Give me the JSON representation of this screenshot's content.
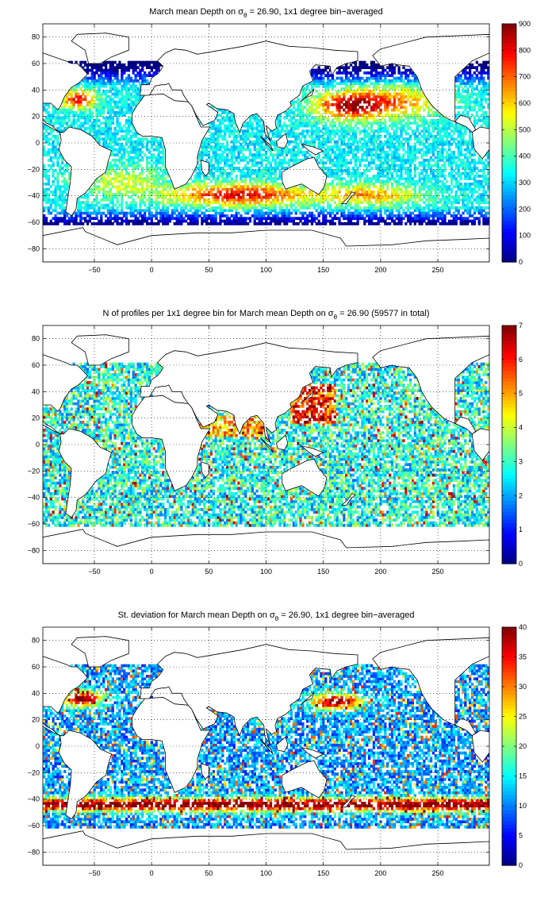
{
  "chart_data": [
    {
      "type": "heatmap",
      "title_main": "March mean Depth on σ",
      "title_sub": "θ",
      "title_rest": " = 26.90, 1x1 degree bin−averaged",
      "xticks": [
        "−50",
        "0",
        "50",
        "100",
        "150",
        "200",
        "250"
      ],
      "xtick_values": [
        -50,
        0,
        50,
        100,
        150,
        200,
        250
      ],
      "yticks": [
        "80",
        "60",
        "40",
        "20",
        "0",
        "−20",
        "−40",
        "−60",
        "−80"
      ],
      "ytick_values": [
        80,
        60,
        40,
        20,
        0,
        -20,
        -40,
        -60,
        -80
      ],
      "xlim": [
        -95,
        295
      ],
      "ylim": [
        -90,
        90
      ],
      "colorbar": {
        "min": 0,
        "max": 900,
        "ticks": [
          "0",
          "100",
          "200",
          "300",
          "400",
          "500",
          "600",
          "700",
          "800",
          "900"
        ],
        "tick_values": [
          0,
          100,
          200,
          300,
          400,
          500,
          600,
          700,
          800,
          900
        ]
      },
      "colormap": "jet",
      "grid": "dotted",
      "field": "depth"
    },
    {
      "type": "heatmap",
      "title_main": "N of profiles per 1x1 degree bin for March mean Depth on σ",
      "title_sub": "θ",
      "title_rest": " = 26.90 (59577 in total)",
      "xticks": [
        "−50",
        "0",
        "50",
        "100",
        "150",
        "200",
        "250"
      ],
      "xtick_values": [
        -50,
        0,
        50,
        100,
        150,
        200,
        250
      ],
      "yticks": [
        "80",
        "60",
        "40",
        "20",
        "0",
        "−20",
        "−40",
        "−60",
        "−80"
      ],
      "ytick_values": [
        80,
        60,
        40,
        20,
        0,
        -20,
        -40,
        -60,
        -80
      ],
      "xlim": [
        -95,
        295
      ],
      "ylim": [
        -90,
        90
      ],
      "colorbar": {
        "min": 0,
        "max": 7,
        "ticks": [
          "0",
          "1",
          "2",
          "3",
          "4",
          "5",
          "6",
          "7"
        ],
        "tick_values": [
          0,
          1,
          2,
          3,
          4,
          5,
          6,
          7
        ]
      },
      "colormap": "jet",
      "grid": "dotted",
      "field": "count"
    },
    {
      "type": "heatmap",
      "title_main": "St. deviation for March mean Depth on σ",
      "title_sub": "θ",
      "title_rest": " = 26.90, 1x1 degree bin−averaged",
      "xticks": [
        "−50",
        "0",
        "50",
        "100",
        "150",
        "200",
        "250"
      ],
      "xtick_values": [
        -50,
        0,
        50,
        100,
        150,
        200,
        250
      ],
      "yticks": [
        "80",
        "60",
        "40",
        "20",
        "0",
        "−20",
        "−40",
        "−60",
        "−80"
      ],
      "ytick_values": [
        80,
        60,
        40,
        20,
        0,
        -20,
        -40,
        -60,
        -80
      ],
      "xlim": [
        -95,
        295
      ],
      "ylim": [
        -90,
        90
      ],
      "colorbar": {
        "min": 0,
        "max": 40,
        "ticks": [
          "0",
          "5",
          "10",
          "15",
          "20",
          "25",
          "30",
          "35",
          "40"
        ],
        "tick_values": [
          0,
          5,
          10,
          15,
          20,
          25,
          30,
          35,
          40
        ]
      },
      "colormap": "jet",
      "grid": "dotted",
      "field": "std"
    }
  ]
}
